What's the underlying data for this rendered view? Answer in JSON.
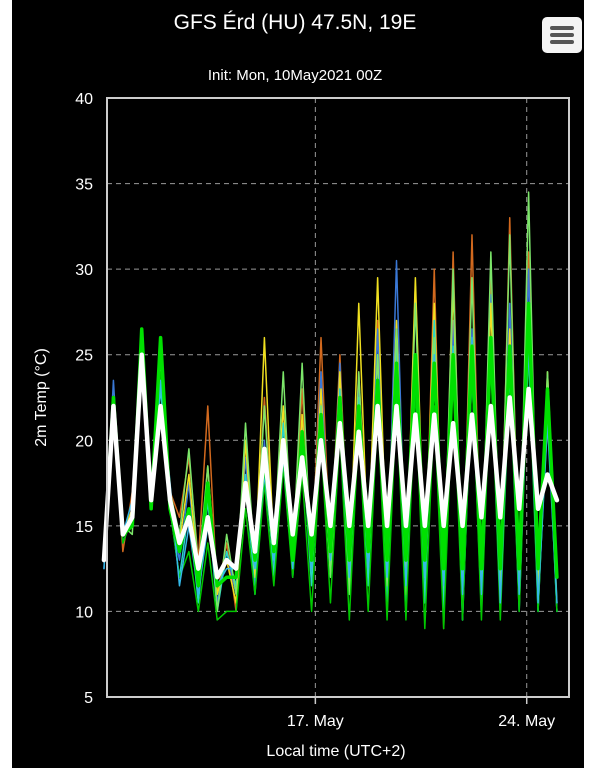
{
  "menu": {
    "icon": "hamburger-menu-icon"
  },
  "chart_data": {
    "type": "line",
    "title": "GFS Érd (HU) 47.5N, 19E",
    "subtitle": "Init: Mon, 10May2021 00Z",
    "xlabel": "Local time (UTC+2)",
    "ylabel": "2m Temp (°C)",
    "x_ticks": [
      {
        "label": "17. May",
        "x": 7
      },
      {
        "label": "24. May",
        "x": 14
      }
    ],
    "xlim": [
      0.1,
      15.4
    ],
    "ylim": [
      5,
      40
    ],
    "y_ticks": [
      5,
      10,
      15,
      20,
      25,
      30,
      35,
      40
    ],
    "grid": true,
    "series": [
      {
        "role": "member",
        "color": "#d2691e",
        "values": [
          13.0,
          22.0,
          13.5,
          17.0,
          25.0,
          16.0,
          24.0,
          17.0,
          15.5,
          19.0,
          13.0,
          22.0,
          11.0,
          14.0,
          10.0,
          20.0,
          12.0,
          22.5,
          14.0,
          21.0,
          13.0,
          23.0,
          12.0,
          26.0,
          13.0,
          25.0,
          12.0,
          24.0,
          12.5,
          27.0,
          11.5,
          26.0,
          10.5,
          29.0,
          11.0,
          30.0,
          9.0,
          31.0,
          10.0,
          32.0,
          11.0,
          30.0,
          10.5,
          33.0,
          10.5,
          31.0,
          11.5,
          21.0,
          12.0
        ]
      },
      {
        "role": "member",
        "color": "#3a78d6",
        "values": [
          12.5,
          23.5,
          14.0,
          15.5,
          26.0,
          16.5,
          25.0,
          16.0,
          13.0,
          17.5,
          11.5,
          17.5,
          10.5,
          13.5,
          11.0,
          19.0,
          11.5,
          20.0,
          12.5,
          22.0,
          13.0,
          21.0,
          12.0,
          24.0,
          12.5,
          24.5,
          11.0,
          23.0,
          12.0,
          26.5,
          11.0,
          30.5,
          11.0,
          29.0,
          10.5,
          26.0,
          10.0,
          27.0,
          9.5,
          26.5,
          10.0,
          28.5,
          11.0,
          28.0,
          10.5,
          30.0,
          10.0,
          23.0,
          10.0
        ]
      },
      {
        "role": "member",
        "color": "#f0e020",
        "values": [
          13.0,
          22.0,
          14.5,
          16.0,
          25.5,
          16.0,
          24.0,
          16.5,
          14.0,
          18.0,
          12.0,
          18.5,
          11.0,
          13.0,
          10.5,
          20.0,
          12.0,
          26.0,
          13.5,
          22.0,
          12.5,
          21.5,
          13.0,
          23.0,
          12.5,
          24.0,
          11.5,
          28.0,
          13.0,
          29.5,
          12.0,
          27.0,
          11.5,
          29.5,
          12.0,
          28.0,
          11.0,
          29.0,
          10.5,
          25.0,
          11.0,
          28.0,
          11.5,
          26.5,
          12.0,
          27.0,
          11.5,
          24.0,
          12.0
        ]
      },
      {
        "role": "member",
        "color": "#2ad4c8",
        "values": [
          13.0,
          21.0,
          15.0,
          15.0,
          24.0,
          17.0,
          23.0,
          16.0,
          12.0,
          16.0,
          10.5,
          16.5,
          10.0,
          13.5,
          11.5,
          18.0,
          11.0,
          19.5,
          12.0,
          21.0,
          12.0,
          20.0,
          11.5,
          22.0,
          12.0,
          23.0,
          11.0,
          22.5,
          11.5,
          25.0,
          10.5,
          26.0,
          10.0,
          24.0,
          10.5,
          27.0,
          10.0,
          25.5,
          9.5,
          24.0,
          10.0,
          26.0,
          10.0,
          25.0,
          10.0,
          26.0,
          10.0,
          22.0,
          10.0
        ]
      },
      {
        "role": "member",
        "color": "#7ce66a",
        "values": [
          13.0,
          22.5,
          15.0,
          14.5,
          26.5,
          16.5,
          24.5,
          17.0,
          14.5,
          19.5,
          12.5,
          18.5,
          10.0,
          14.5,
          11.0,
          21.0,
          12.5,
          22.0,
          13.5,
          24.0,
          13.0,
          24.5,
          12.5,
          22.0,
          12.0,
          21.5,
          11.0,
          24.0,
          12.5,
          25.0,
          11.5,
          26.5,
          11.0,
          28.0,
          12.0,
          26.0,
          11.5,
          30.0,
          11.0,
          29.5,
          11.0,
          31.0,
          11.5,
          32.0,
          11.0,
          34.5,
          10.5,
          24.0,
          10.5
        ]
      },
      {
        "role": "member",
        "color": "#00c800",
        "values": [
          13.0,
          22.0,
          14.0,
          15.5,
          25.0,
          16.0,
          24.0,
          16.0,
          12.0,
          13.5,
          10.0,
          14.0,
          9.5,
          10.0,
          10.0,
          16.0,
          11.0,
          17.5,
          11.5,
          18.5,
          12.0,
          18.0,
          10.0,
          20.0,
          10.5,
          20.5,
          9.5,
          21.0,
          10.0,
          22.0,
          9.5,
          22.5,
          9.5,
          23.0,
          9.0,
          22.0,
          9.0,
          23.5,
          9.5,
          24.0,
          9.5,
          24.5,
          9.5,
          24.0,
          10.0,
          25.0,
          10.0,
          22.0,
          10.0
        ]
      },
      {
        "role": "member",
        "color": "#34b8e8",
        "values": [
          12.5,
          21.5,
          14.5,
          16.5,
          24.5,
          17.0,
          23.5,
          17.5,
          11.5,
          15.0,
          11.0,
          15.0,
          11.5,
          12.5,
          12.5,
          17.0,
          12.5,
          18.0,
          13.0,
          19.0,
          12.5,
          19.5,
          12.5,
          21.0,
          13.0,
          21.0,
          12.0,
          21.5,
          12.5,
          23.0,
          12.0,
          23.5,
          11.5,
          24.0,
          12.0,
          25.0,
          11.5,
          24.5,
          11.0,
          26.0,
          11.0,
          25.0,
          10.5,
          24.0,
          11.0,
          25.5,
          10.5,
          21.0,
          10.5
        ]
      },
      {
        "role": "control",
        "color": "#00e000",
        "values": [
          13.0,
          22.5,
          14.5,
          15.0,
          26.5,
          16.0,
          26.0,
          16.0,
          13.5,
          16.0,
          11.5,
          17.5,
          11.5,
          12.0,
          12.0,
          17.5,
          13.0,
          19.0,
          13.5,
          20.0,
          13.0,
          20.5,
          13.0,
          21.5,
          13.5,
          22.5,
          13.0,
          22.0,
          13.5,
          23.5,
          13.0,
          24.5,
          13.0,
          25.0,
          13.0,
          24.5,
          12.5,
          25.0,
          12.5,
          25.5,
          12.5,
          26.0,
          12.5,
          25.5,
          12.5,
          28.0,
          12.5,
          23.0,
          12.0
        ]
      },
      {
        "role": "mean",
        "color": "#ffffff",
        "values": [
          13.0,
          22.0,
          14.5,
          15.5,
          25.0,
          16.5,
          22.0,
          16.5,
          14.0,
          15.5,
          12.5,
          15.5,
          12.0,
          13.0,
          12.5,
          17.5,
          13.5,
          19.5,
          14.0,
          20.0,
          14.5,
          19.0,
          14.5,
          20.0,
          15.0,
          21.0,
          15.0,
          20.5,
          15.0,
          22.0,
          15.0,
          22.0,
          15.0,
          21.5,
          15.0,
          21.5,
          15.0,
          21.0,
          15.0,
          21.5,
          15.5,
          22.0,
          15.5,
          22.5,
          16.0,
          23.0,
          16.0,
          18.0,
          16.5
        ]
      }
    ]
  }
}
